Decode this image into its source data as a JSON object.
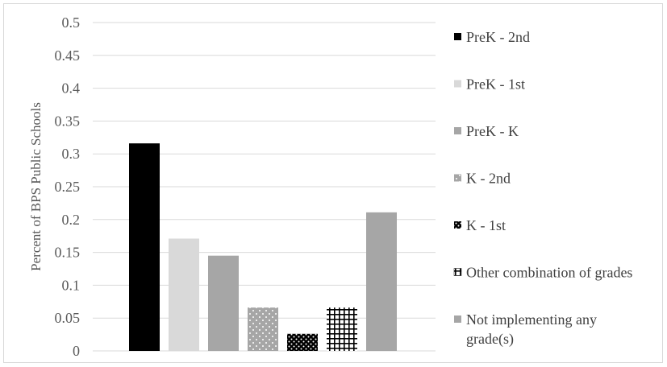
{
  "chart_data": {
    "type": "bar",
    "title": "",
    "xlabel": "",
    "ylabel": "Percent of BPS Public Schools",
    "ylim": [
      0,
      0.5
    ],
    "yticks": [
      "0",
      "0.05",
      "0.1",
      "0.15",
      "0.2",
      "0.25",
      "0.3",
      "0.35",
      "0.4",
      "0.45",
      "0.5"
    ],
    "grid": true,
    "legend_position": "right",
    "series": [
      {
        "name": "PreK - 2nd",
        "value": 0.316,
        "color": "#000000",
        "pattern": "solid"
      },
      {
        "name": "PreK - 1st",
        "value": 0.171,
        "color": "#d9d9d9",
        "pattern": "solid"
      },
      {
        "name": "PreK - K",
        "value": 0.145,
        "color": "#a6a6a6",
        "pattern": "solid"
      },
      {
        "name": "K - 2nd",
        "value": 0.066,
        "color": "#a6a6a6",
        "pattern": "dots-light"
      },
      {
        "name": "K - 1st",
        "value": 0.026,
        "color": "#000000",
        "pattern": "dots-dark"
      },
      {
        "name": "Other combination of grades",
        "value": 0.066,
        "color": "#000000",
        "pattern": "grid"
      },
      {
        "name": "Not implementing any grade(s)",
        "value": 0.211,
        "color": "#a6a6a6",
        "pattern": "solid"
      }
    ]
  }
}
